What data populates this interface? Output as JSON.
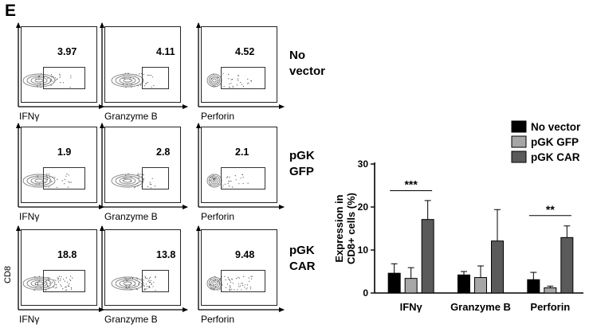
{
  "panel_letter": "E",
  "facs": {
    "y_axis_label": "CD8",
    "rows": [
      {
        "label_line1": "No",
        "label_line2": "vector",
        "plots": [
          {
            "marker": "IFNγ",
            "percent": "3.97"
          },
          {
            "marker": "Granzyme B",
            "percent": "4.11"
          },
          {
            "marker": "Perforin",
            "percent": "4.52"
          }
        ]
      },
      {
        "label_line1": "pGK",
        "label_line2": "GFP",
        "plots": [
          {
            "marker": "IFNγ",
            "percent": "1.9"
          },
          {
            "marker": "Granzyme B",
            "percent": "2.8"
          },
          {
            "marker": "Perforin",
            "percent": "2.1"
          }
        ]
      },
      {
        "label_line1": "pGK",
        "label_line2": "CAR",
        "plots": [
          {
            "marker": "IFNγ",
            "percent": "18.8"
          },
          {
            "marker": "Granzyme B",
            "percent": "13.8"
          },
          {
            "marker": "Perforin",
            "percent": "9.48"
          }
        ]
      }
    ]
  },
  "chart_data": {
    "type": "bar",
    "title": "",
    "xlabel": "",
    "ylabel": "Expression in CD8+ cells (%)",
    "ylim": [
      0,
      30
    ],
    "yticks": [
      0,
      10,
      20,
      30
    ],
    "categories": [
      "IFNγ",
      "Granzyme B",
      "Perforin"
    ],
    "series": [
      {
        "name": "No vector",
        "color": "#000000",
        "values": [
          4.6,
          4.2,
          3.1
        ],
        "errors": [
          2.2,
          0.8,
          1.7
        ]
      },
      {
        "name": "pGK GFP",
        "color": "#a6a6a6",
        "values": [
          3.4,
          3.6,
          1.2
        ],
        "errors": [
          2.5,
          2.7,
          0.4
        ]
      },
      {
        "name": "pGK CAR",
        "color": "#5a5a5a",
        "values": [
          17.1,
          12.1,
          12.9
        ],
        "errors": [
          4.4,
          7.3,
          2.7
        ]
      }
    ],
    "significance": [
      {
        "category": "IFNγ",
        "label": "***",
        "at_value": 23.8
      },
      {
        "category": "Perforin",
        "label": "**",
        "at_value": 18.0
      }
    ],
    "legend_position": "top-right"
  }
}
